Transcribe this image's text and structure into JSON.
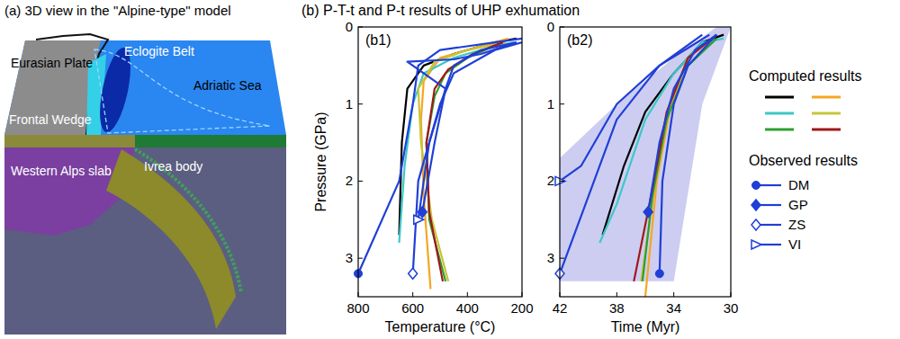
{
  "panel_a": {
    "title": "(a) 3D view in the \"Alpine-type\" model",
    "labels": [
      "Eurasian Plate",
      "Eclogite Belt",
      "Adriatic Sea",
      "Frontal Wedge",
      "Western Alps slab",
      "Ivrea body"
    ]
  },
  "panel_b_title": "(b) P-T-t and P-t results of UHP exhumation",
  "legend_titles": [
    "Computed results",
    "Observed results"
  ],
  "chart_data": [
    {
      "type": "line",
      "title": "(b1)",
      "x_label": "Temperature (°C)",
      "y_label": "Pressure (GPa)",
      "xlim": [
        800,
        200
      ],
      "xticks": [
        800,
        600,
        400,
        200
      ],
      "ylim": [
        0,
        3.5
      ],
      "yticks": [
        0,
        1,
        2,
        3
      ],
      "series": [
        {
          "color": "#000000",
          "x": [
            650,
            640,
            620,
            560,
            450,
            300,
            220
          ],
          "values": [
            2.7,
            1.5,
            0.8,
            0.5,
            0.35,
            0.2,
            0.15
          ]
        },
        {
          "color": "#f5a623",
          "x": [
            535,
            560,
            570,
            560,
            500,
            350,
            250
          ],
          "values": [
            3.4,
            2.2,
            1.2,
            0.7,
            0.4,
            0.25,
            0.15
          ]
        },
        {
          "color": "#3cc8c8",
          "x": [
            650,
            630,
            600,
            560,
            450,
            300,
            230
          ],
          "values": [
            2.8,
            1.8,
            1.0,
            0.6,
            0.4,
            0.25,
            0.2
          ]
        },
        {
          "color": "#c8c43c",
          "x": [
            470,
            530,
            570,
            580,
            520,
            400,
            260
          ],
          "values": [
            3.3,
            2.5,
            1.5,
            0.8,
            0.45,
            0.3,
            0.2
          ]
        },
        {
          "color": "#2ca02c",
          "x": [
            480,
            540,
            550,
            520,
            480,
            400,
            270
          ],
          "values": [
            3.3,
            2.5,
            1.5,
            0.9,
            0.6,
            0.4,
            0.2
          ]
        },
        {
          "color": "#a01818",
          "x": [
            490,
            540,
            550,
            520,
            470,
            380,
            270
          ],
          "values": [
            3.3,
            2.4,
            1.5,
            0.8,
            0.55,
            0.35,
            0.2
          ]
        },
        {
          "name": "DM",
          "color": "#1f3fd6",
          "marker": "circle",
          "x": [
            800,
            650,
            600,
            580,
            500,
            300,
            200
          ],
          "values": [
            3.2,
            2.0,
            1.0,
            0.5,
            0.3,
            0.2,
            0.15
          ]
        },
        {
          "name": "GP",
          "color": "#1f3fd6",
          "marker": "diamond",
          "x": [
            565,
            520,
            480,
            450,
            350,
            220
          ],
          "values": [
            2.4,
            1.5,
            0.8,
            0.5,
            0.3,
            0.2
          ]
        },
        {
          "name": "ZS",
          "color": "#1f3fd6",
          "marker": "open-diamond",
          "x": [
            600,
            580,
            500,
            450,
            300,
            200
          ],
          "values": [
            3.2,
            2.0,
            1.0,
            0.6,
            0.3,
            0.2
          ]
        },
        {
          "name": "VI",
          "color": "#1f3fd6",
          "marker": "open-triangle",
          "x": [
            580,
            540,
            480,
            620,
            450,
            350,
            220
          ],
          "values": [
            2.5,
            1.5,
            0.8,
            0.45,
            0.42,
            0.35,
            0.2
          ]
        }
      ]
    },
    {
      "type": "line",
      "title": "(b2)",
      "x_label": "Time (Myr)",
      "legend": "right",
      "xlim": [
        42,
        30
      ],
      "xticks": [
        42,
        38,
        34,
        30
      ],
      "ylim": [
        0,
        3.5
      ],
      "yticks": [
        0,
        1,
        2,
        3
      ],
      "series": [
        {
          "type": "area",
          "color": "#c4c4f0",
          "x": [
            42,
            38,
            34,
            31,
            30,
            32,
            34,
            42
          ],
          "values": [
            1.7,
            1.0,
            0.4,
            0,
            0,
            1.0,
            3.3,
            3.3
          ]
        },
        {
          "color": "#000000",
          "x": [
            39,
            37.5,
            36,
            34,
            32,
            30.5
          ],
          "values": [
            2.7,
            1.8,
            1.1,
            0.6,
            0.2,
            0.1
          ]
        },
        {
          "color": "#f5a623",
          "x": [
            36,
            35.2,
            34.2,
            33,
            31
          ],
          "values": [
            3.5,
            2.0,
            1.0,
            0.4,
            0.1
          ]
        },
        {
          "color": "#3cc8c8",
          "x": [
            39.2,
            38,
            36,
            34,
            32,
            30.5
          ],
          "values": [
            2.8,
            2.3,
            1.2,
            0.6,
            0.2,
            0.15
          ]
        },
        {
          "color": "#c8c43c",
          "x": [
            36.3,
            35.3,
            34.3,
            33,
            31
          ],
          "values": [
            3.3,
            2.0,
            1.0,
            0.4,
            0.1
          ]
        },
        {
          "color": "#2ca02c",
          "x": [
            36.2,
            35.5,
            34.5,
            33,
            31
          ],
          "values": [
            3.3,
            2.2,
            1.2,
            0.5,
            0.15
          ]
        },
        {
          "color": "#a01818",
          "x": [
            36.8,
            35.6,
            34.5,
            33,
            31
          ],
          "values": [
            3.3,
            2.2,
            1.1,
            0.4,
            0.1
          ]
        },
        {
          "name": "DM",
          "color": "#1f3fd6",
          "marker": "circle",
          "x": [
            35,
            34.8,
            34,
            33,
            31
          ],
          "values": [
            3.2,
            2.0,
            1.0,
            0.5,
            0.1
          ]
        },
        {
          "name": "GP",
          "color": "#1f3fd6",
          "marker": "diamond",
          "x": [
            35.8,
            35,
            34,
            32.5,
            31
          ],
          "values": [
            2.4,
            1.5,
            0.8,
            0.3,
            0.1
          ]
        },
        {
          "name": "ZS",
          "color": "#1f3fd6",
          "marker": "open-diamond",
          "x": [
            42,
            40,
            38,
            35,
            32
          ],
          "values": [
            3.2,
            2.2,
            1.2,
            0.5,
            0.1
          ]
        },
        {
          "name": "VI",
          "color": "#1f3fd6",
          "marker": "open-triangle",
          "x": [
            42,
            40.5,
            38,
            35,
            31.5
          ],
          "values": [
            2.0,
            1.8,
            1.0,
            0.5,
            0.1
          ]
        }
      ]
    }
  ]
}
